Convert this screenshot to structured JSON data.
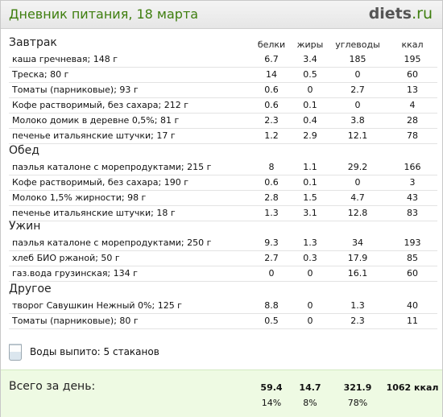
{
  "header": {
    "title": "Дневник питания, 18 марта",
    "logo_main": "diets",
    "logo_tld": ".ru"
  },
  "columns": {
    "proteins": "белки",
    "fats": "жиры",
    "carbs": "углеводы",
    "kcal": "ккал"
  },
  "meals": [
    {
      "name": "Завтрак",
      "items": [
        {
          "food": "каша гречневая; 148 г",
          "p": "6.7",
          "f": "3.4",
          "c": "185",
          "k": "195"
        },
        {
          "food": "Треска; 80 г",
          "p": "14",
          "f": "0.5",
          "c": "0",
          "k": "60"
        },
        {
          "food": "Томаты (парниковые); 93 г",
          "p": "0.6",
          "f": "0",
          "c": "2.7",
          "k": "13"
        },
        {
          "food": "Кофе растворимый, без сахара; 212 г",
          "p": "0.6",
          "f": "0.1",
          "c": "0",
          "k": "4"
        },
        {
          "food": "Молоко домик в деревне 0,5%; 81 г",
          "p": "2.3",
          "f": "0.4",
          "c": "3.8",
          "k": "28"
        },
        {
          "food": "печенье итальянские штучки; 17 г",
          "p": "1.2",
          "f": "2.9",
          "c": "12.1",
          "k": "78"
        }
      ]
    },
    {
      "name": "Обед",
      "items": [
        {
          "food": "паэлья каталоне с морепродуктами; 215 г",
          "p": "8",
          "f": "1.1",
          "c": "29.2",
          "k": "166"
        },
        {
          "food": "Кофе растворимый, без сахара; 190 г",
          "p": "0.6",
          "f": "0.1",
          "c": "0",
          "k": "3"
        },
        {
          "food": "Молоко 1,5% жирности; 98 г",
          "p": "2.8",
          "f": "1.5",
          "c": "4.7",
          "k": "43"
        },
        {
          "food": "печенье итальянские штучки; 18 г",
          "p": "1.3",
          "f": "3.1",
          "c": "12.8",
          "k": "83"
        }
      ]
    },
    {
      "name": "Ужин",
      "items": [
        {
          "food": "паэлья каталоне с морепродуктами; 250 г",
          "p": "9.3",
          "f": "1.3",
          "c": "34",
          "k": "193"
        },
        {
          "food": "хлеб БИО ржаной; 50 г",
          "p": "2.7",
          "f": "0.3",
          "c": "17.9",
          "k": "85"
        },
        {
          "food": "газ.вода грузинская; 134 г",
          "p": "0",
          "f": "0",
          "c": "16.1",
          "k": "60"
        }
      ]
    },
    {
      "name": "Другое",
      "items": [
        {
          "food": "творог Савушкин Нежный 0%; 125 г",
          "p": "8.8",
          "f": "0",
          "c": "1.3",
          "k": "40"
        },
        {
          "food": "Томаты (парниковые); 80 г",
          "p": "0.5",
          "f": "0",
          "c": "2.3",
          "k": "11"
        }
      ]
    }
  ],
  "water": {
    "label": "Воды выпито: 5 стаканов",
    "icon": "water-glass-icon"
  },
  "totals": {
    "label": "Всего за день:",
    "p": "59.4",
    "f": "14.7",
    "c": "321.9",
    "k": "1062 ккал",
    "p_pct": "14%",
    "f_pct": "8%",
    "c_pct": "78%"
  },
  "colors": {
    "accent": "#3e7e0e",
    "totals_bg": "#eefae3"
  }
}
